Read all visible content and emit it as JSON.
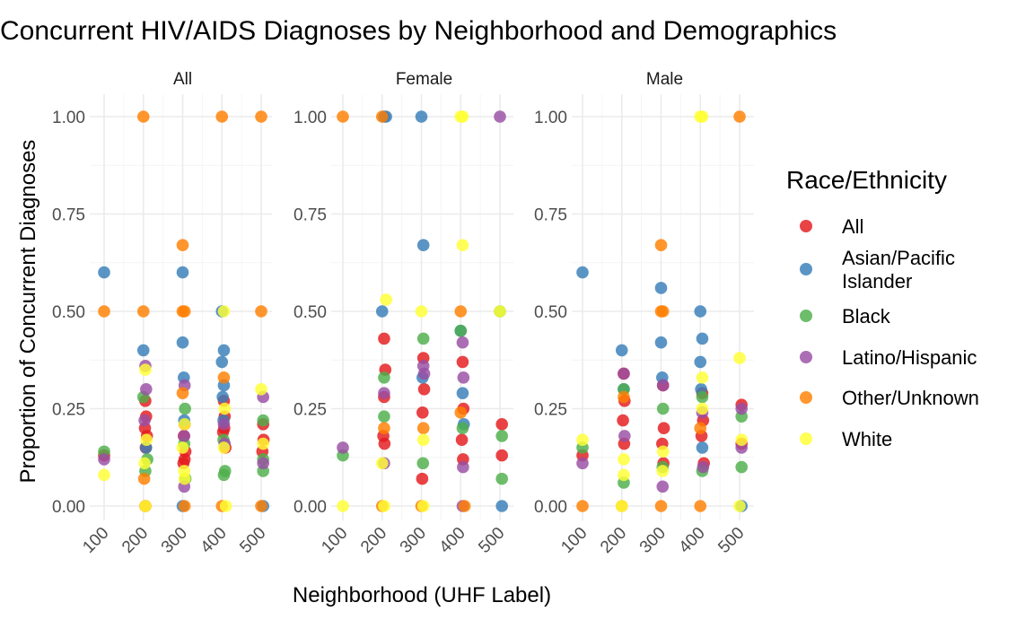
{
  "chart_data": {
    "type": "scatter",
    "title": "Concurrent HIV/AIDS Diagnoses by Neighborhood and Demographics",
    "xlabel": "Neighborhood (UHF Label)",
    "ylabel": "Proportion of Concurrent Diagnoses",
    "x_ticks": [
      "100",
      "200",
      "300",
      "400",
      "500"
    ],
    "y_ticks": [
      "0.00",
      "0.25",
      "0.50",
      "0.75",
      "1.00"
    ],
    "xlim": [
      100,
      500
    ],
    "ylim": [
      0,
      1
    ],
    "grid": true,
    "legend": {
      "title": "Race/Ethnicity",
      "position": "right",
      "entries": [
        {
          "name": "All",
          "color": "#E41A1C"
        },
        {
          "name": "Asian/Pacific Islander",
          "lines": [
            "Asian/Pacific",
            "Islander"
          ],
          "color": "#377EB8"
        },
        {
          "name": "Black",
          "color": "#4DAF4A"
        },
        {
          "name": "Latino/Hispanic",
          "color": "#984EA3"
        },
        {
          "name": "Other/Unknown",
          "color": "#FF7F00"
        },
        {
          "name": "White",
          "color": "#FFFF33"
        }
      ]
    },
    "panels": [
      {
        "name": "All",
        "series": [
          {
            "name": "All",
            "points": [
              [
                100,
                0.13
              ],
              [
                205,
                0.27
              ],
              [
                207,
                0.23
              ],
              [
                204,
                0.2
              ],
              [
                209,
                0.18
              ],
              [
                206,
                0.15
              ],
              [
                305,
                0.21
              ],
              [
                303,
                0.18
              ],
              [
                307,
                0.14
              ],
              [
                302,
                0.11
              ],
              [
                305,
                0.12
              ],
              [
                405,
                0.27
              ],
              [
                407,
                0.23
              ],
              [
                403,
                0.19
              ],
              [
                409,
                0.15
              ],
              [
                406,
                0.2
              ],
              [
                505,
                0.21
              ],
              [
                503,
                0.14
              ],
              [
                506,
                0.17
              ],
              [
                205,
                0.0
              ]
            ]
          },
          {
            "name": "Asian/Pacific Islander",
            "points": [
              [
                100,
                0.6
              ],
              [
                200,
                0.4
              ],
              [
                300,
                0.6
              ],
              [
                300,
                0.42
              ],
              [
                303,
                0.33
              ],
              [
                400,
                0.5
              ],
              [
                405,
                0.4
              ],
              [
                400,
                0.37
              ],
              [
                402,
                0.28
              ],
              [
                405,
                0.31
              ],
              [
                207,
                0.15
              ],
              [
                304,
                0.22
              ],
              [
                404,
                0.22
              ],
              [
                300,
                0.0
              ],
              [
                505,
                0.0
              ]
            ]
          },
          {
            "name": "Black",
            "points": [
              [
                100,
                0.14
              ],
              [
                205,
                0.09
              ],
              [
                210,
                0.12
              ],
              [
                200,
                0.28
              ],
              [
                306,
                0.25
              ],
              [
                304,
                0.16
              ],
              [
                307,
                0.07
              ],
              [
                405,
                0.08
              ],
              [
                408,
                0.09
              ],
              [
                404,
                0.17
              ],
              [
                505,
                0.09
              ],
              [
                505,
                0.22
              ],
              [
                505,
                0.12
              ]
            ]
          },
          {
            "name": "Latino/Hispanic",
            "points": [
              [
                100,
                0.12
              ],
              [
                205,
                0.36
              ],
              [
                207,
                0.3
              ],
              [
                203,
                0.22
              ],
              [
                305,
                0.31
              ],
              [
                304,
                0.18
              ],
              [
                304,
                0.05
              ],
              [
                405,
                0.21
              ],
              [
                407,
                0.16
              ],
              [
                505,
                0.28
              ],
              [
                505,
                0.11
              ]
            ]
          },
          {
            "name": "Other/Unknown",
            "points": [
              [
                100,
                0.5
              ],
              [
                200,
                1.0
              ],
              [
                400,
                1.0
              ],
              [
                500,
                1.0
              ],
              [
                200,
                0.5
              ],
              [
                300,
                0.67
              ],
              [
                300,
                0.5
              ],
              [
                305,
                0.5
              ],
              [
                500,
                0.5
              ],
              [
                405,
                0.33
              ],
              [
                202,
                0.07
              ],
              [
                300,
                0.29
              ],
              [
                205,
                0.0
              ],
              [
                305,
                0.0
              ],
              [
                500,
                0.0
              ],
              [
                400,
                0.0
              ]
            ]
          },
          {
            "name": "White",
            "points": [
              [
                100,
                0.08
              ],
              [
                205,
                0.35
              ],
              [
                208,
                0.17
              ],
              [
                203,
                0.11
              ],
              [
                305,
                0.21
              ],
              [
                304,
                0.09
              ],
              [
                305,
                0.07
              ],
              [
                405,
                0.5
              ],
              [
                407,
                0.25
              ],
              [
                405,
                0.15
              ],
              [
                500,
                0.3
              ],
              [
                505,
                0.16
              ],
              [
                205,
                0.0
              ],
              [
                410,
                0.0
              ],
              [
                300,
                0.15
              ]
            ]
          }
        ]
      },
      {
        "name": "Female",
        "series": [
          {
            "name": "All",
            "points": [
              [
                205,
                0.43
              ],
              [
                208,
                0.35
              ],
              [
                205,
                0.28
              ],
              [
                203,
                0.18
              ],
              [
                206,
                0.16
              ],
              [
                305,
                0.38
              ],
              [
                307,
                0.3
              ],
              [
                303,
                0.24
              ],
              [
                302,
                0.07
              ],
              [
                405,
                0.37
              ],
              [
                407,
                0.25
              ],
              [
                403,
                0.17
              ],
              [
                406,
                0.12
              ],
              [
                505,
                0.21
              ],
              [
                505,
                0.13
              ]
            ]
          },
          {
            "name": "Asian/Pacific Islander",
            "points": [
              [
                205,
                1.0
              ],
              [
                210,
                1.0
              ],
              [
                300,
                1.0
              ],
              [
                305,
                0.67
              ],
              [
                200,
                0.5
              ],
              [
                400,
                0.45
              ],
              [
                405,
                0.29
              ],
              [
                303,
                0.33
              ],
              [
                408,
                0.21
              ],
              [
                505,
                0.0
              ]
            ]
          },
          {
            "name": "Black",
            "points": [
              [
                100,
                0.13
              ],
              [
                205,
                0.33
              ],
              [
                205,
                0.23
              ],
              [
                305,
                0.43
              ],
              [
                304,
                0.11
              ],
              [
                400,
                0.45
              ],
              [
                405,
                0.2
              ],
              [
                505,
                0.18
              ],
              [
                505,
                0.07
              ],
              [
                500,
                0.5
              ]
            ]
          },
          {
            "name": "Latino/Hispanic",
            "points": [
              [
                100,
                0.15
              ],
              [
                205,
                0.29
              ],
              [
                205,
                0.11
              ],
              [
                305,
                0.36
              ],
              [
                307,
                0.34
              ],
              [
                405,
                0.42
              ],
              [
                407,
                0.33
              ],
              [
                406,
                0.1
              ],
              [
                500,
                1.0
              ],
              [
                405,
                0.0
              ]
            ]
          },
          {
            "name": "Other/Unknown",
            "points": [
              [
                100,
                1.0
              ],
              [
                200,
                1.0
              ],
              [
                400,
                0.5
              ],
              [
                205,
                0.2
              ],
              [
                305,
                0.2
              ],
              [
                400,
                0.24
              ],
              [
                300,
                0.0
              ],
              [
                200,
                0.0
              ],
              [
                410,
                0.0
              ]
            ]
          },
          {
            "name": "White",
            "points": [
              [
                210,
                0.53
              ],
              [
                300,
                0.5
              ],
              [
                400,
                1.0
              ],
              [
                405,
                1.0
              ],
              [
                405,
                0.67
              ],
              [
                500,
                0.5
              ],
              [
                200,
                0.11
              ],
              [
                305,
                0.17
              ],
              [
                100,
                0.0
              ],
              [
                205,
                0.0
              ],
              [
                305,
                0.0
              ]
            ]
          }
        ]
      },
      {
        "name": "Male",
        "series": [
          {
            "name": "All",
            "points": [
              [
                100,
                0.13
              ],
              [
                205,
                0.34
              ],
              [
                207,
                0.27
              ],
              [
                203,
                0.22
              ],
              [
                206,
                0.16
              ],
              [
                305,
                0.31
              ],
              [
                307,
                0.2
              ],
              [
                303,
                0.16
              ],
              [
                306,
                0.11
              ],
              [
                405,
                0.29
              ],
              [
                407,
                0.22
              ],
              [
                403,
                0.18
              ],
              [
                409,
                0.11
              ],
              [
                505,
                0.26
              ],
              [
                505,
                0.16
              ]
            ]
          },
          {
            "name": "Asian/Pacific Islander",
            "points": [
              [
                100,
                0.6
              ],
              [
                200,
                0.4
              ],
              [
                300,
                0.56
              ],
              [
                300,
                0.42
              ],
              [
                303,
                0.33
              ],
              [
                400,
                0.5
              ],
              [
                405,
                0.43
              ],
              [
                400,
                0.37
              ],
              [
                402,
                0.3
              ],
              [
                405,
                0.15
              ],
              [
                205,
                0.3
              ],
              [
                505,
                0.0
              ]
            ]
          },
          {
            "name": "Black",
            "points": [
              [
                100,
                0.15
              ],
              [
                205,
                0.3
              ],
              [
                205,
                0.06
              ],
              [
                305,
                0.25
              ],
              [
                304,
                0.1
              ],
              [
                405,
                0.28
              ],
              [
                405,
                0.09
              ],
              [
                505,
                0.23
              ],
              [
                505,
                0.1
              ]
            ]
          },
          {
            "name": "Latino/Hispanic",
            "points": [
              [
                100,
                0.11
              ],
              [
                205,
                0.34
              ],
              [
                207,
                0.18
              ],
              [
                305,
                0.31
              ],
              [
                304,
                0.05
              ],
              [
                405,
                0.24
              ],
              [
                407,
                0.1
              ],
              [
                505,
                0.25
              ],
              [
                505,
                0.15
              ]
            ]
          },
          {
            "name": "Other/Unknown",
            "points": [
              [
                100,
                0.0
              ],
              [
                200,
                0.0
              ],
              [
                300,
                0.67
              ],
              [
                300,
                0.5
              ],
              [
                305,
                0.5
              ],
              [
                300,
                0.0
              ],
              [
                500,
                1.0
              ],
              [
                400,
                0.0
              ],
              [
                205,
                0.28
              ],
              [
                400,
                0.2
              ]
            ]
          },
          {
            "name": "White",
            "points": [
              [
                100,
                0.17
              ],
              [
                205,
                0.12
              ],
              [
                205,
                0.08
              ],
              [
                305,
                0.14
              ],
              [
                304,
                0.09
              ],
              [
                400,
                1.0
              ],
              [
                405,
                1.0
              ],
              [
                405,
                0.33
              ],
              [
                405,
                0.25
              ],
              [
                500,
                0.38
              ],
              [
                500,
                0.0
              ],
              [
                505,
                0.17
              ],
              [
                200,
                0.0
              ]
            ]
          }
        ]
      }
    ]
  }
}
